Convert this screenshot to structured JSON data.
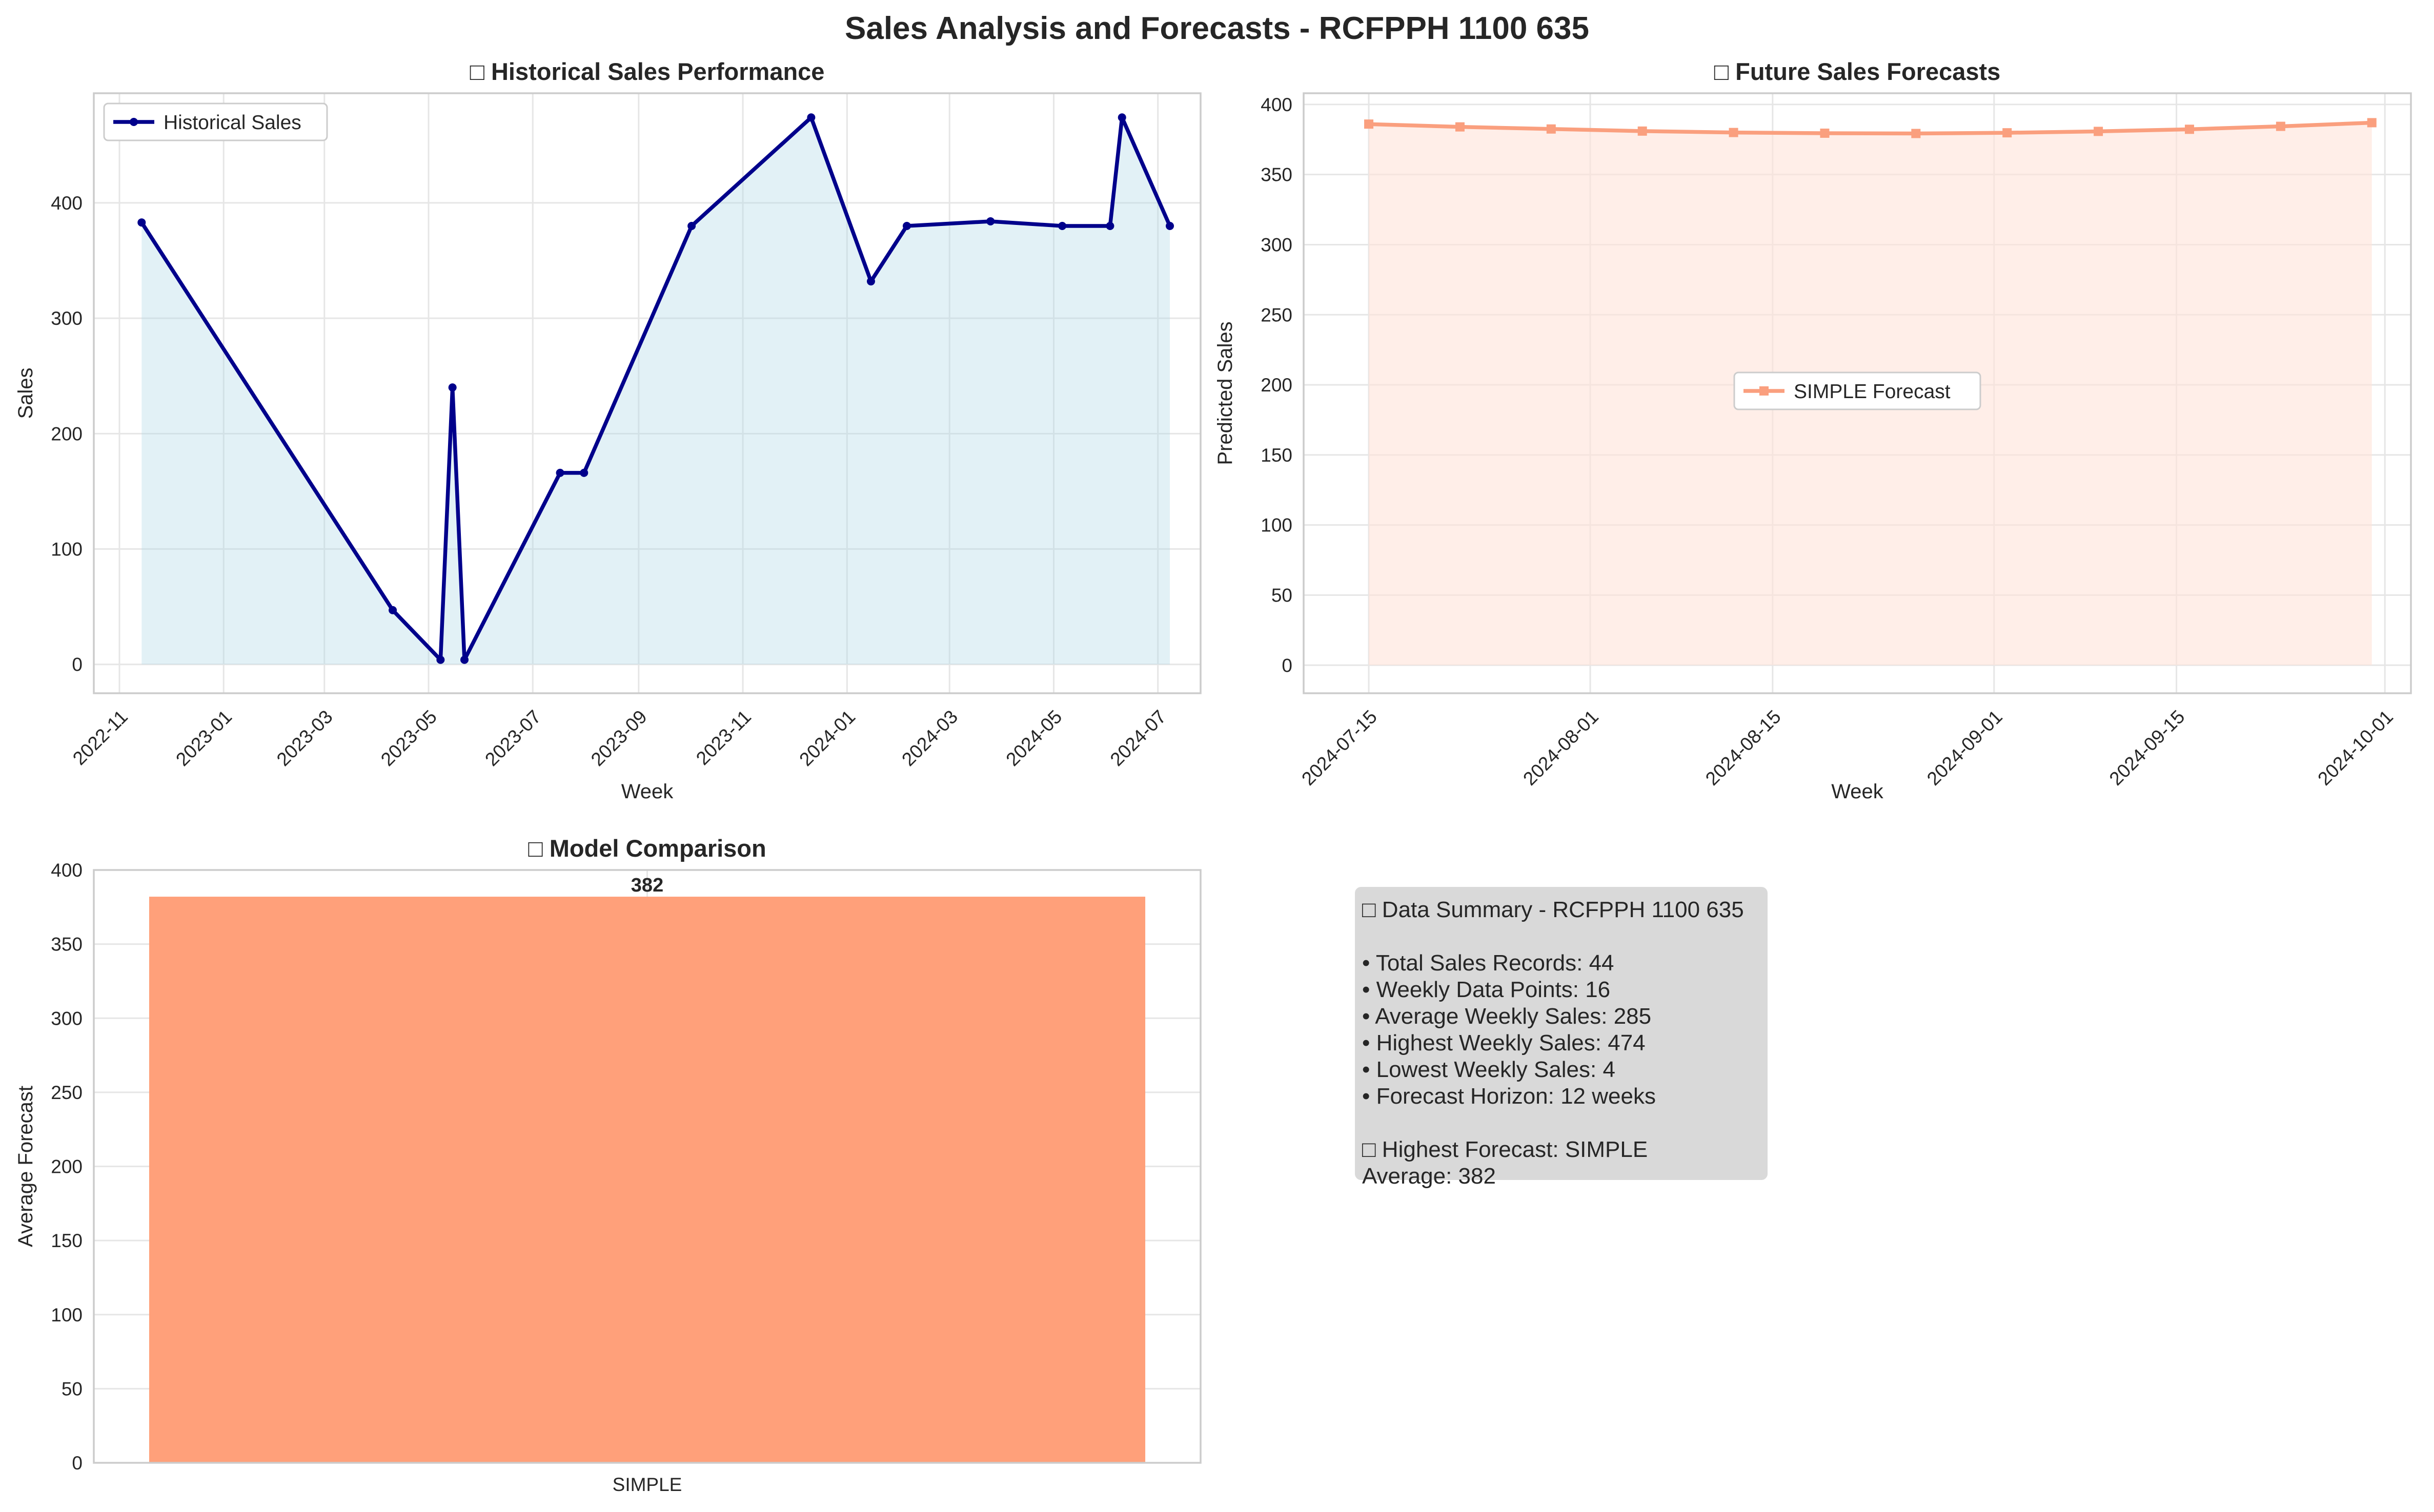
{
  "figure": {
    "title": "Sales Analysis and Forecasts - RCFPPH 1100 635"
  },
  "chart_data": [
    {
      "type": "line",
      "title": "□ Historical Sales Performance",
      "xlabel": "Week",
      "ylabel": "Sales",
      "xlim": [
        "2022-10-17",
        "2024-07-26"
      ],
      "ylim": [
        -25,
        495
      ],
      "x_ticks": [
        "2022-11",
        "2023-01",
        "2023-03",
        "2023-05",
        "2023-07",
        "2023-09",
        "2023-11",
        "2024-01",
        "2024-03",
        "2024-05",
        "2024-07"
      ],
      "y_ticks": [
        0,
        100,
        200,
        300,
        400
      ],
      "grid": true,
      "legend": "upper left",
      "series": [
        {
          "name": "Historical Sales",
          "color": "#00008b",
          "fill_color": "#add8e6",
          "x": [
            "2022-11-14",
            "2023-04-10",
            "2023-05-08",
            "2023-05-15",
            "2023-05-22",
            "2023-07-17",
            "2023-07-31",
            "2023-10-02",
            "2023-12-11",
            "2024-01-15",
            "2024-02-05",
            "2024-03-25",
            "2024-05-06",
            "2024-06-03",
            "2024-06-10",
            "2024-07-08"
          ],
          "y": [
            383,
            47,
            4,
            240,
            4,
            166,
            166,
            380,
            474,
            332,
            380,
            384,
            380,
            380,
            474,
            380
          ]
        }
      ]
    },
    {
      "type": "line",
      "title": "□ Future Sales Forecasts",
      "xlabel": "Week",
      "ylabel": "Predicted Sales",
      "xlim": [
        "2024-07-10",
        "2024-10-03"
      ],
      "ylim": [
        -20,
        408
      ],
      "x_ticks": [
        "2024-07-15",
        "2024-08-01",
        "2024-08-15",
        "2024-09-01",
        "2024-09-15",
        "2024-10-01"
      ],
      "y_ticks": [
        0,
        50,
        100,
        150,
        200,
        250,
        300,
        350,
        400
      ],
      "grid": true,
      "legend": "center",
      "series": [
        {
          "name": "SIMPLE Forecast",
          "color": "#fa9f7e",
          "fill_color": "#ffe3d9",
          "x": [
            "2024-07-15",
            "2024-07-22",
            "2024-07-29",
            "2024-08-05",
            "2024-08-12",
            "2024-08-19",
            "2024-08-26",
            "2024-09-02",
            "2024-09-09",
            "2024-09-16",
            "2024-09-23",
            "2024-09-30"
          ],
          "y": [
            386,
            384,
            382.5,
            381,
            380,
            379.5,
            379.3,
            379.8,
            380.8,
            382.3,
            384.4,
            387
          ]
        }
      ]
    },
    {
      "type": "bar",
      "title": "□ Model Comparison",
      "xlabel": "",
      "ylabel": "Average Forecast",
      "categories": [
        "SIMPLE"
      ],
      "values": [
        382
      ],
      "value_labels": [
        "382"
      ],
      "ylim": [
        0,
        400
      ],
      "y_ticks": [
        0,
        50,
        100,
        150,
        200,
        250,
        300,
        350,
        400
      ],
      "grid": true,
      "color": "#ffa07a"
    }
  ],
  "summary": {
    "lines": [
      "□ Data Summary - RCFPPH 1100 635",
      "",
      "• Total Sales Records: 44",
      "• Weekly Data Points: 16",
      "• Average Weekly Sales: 285",
      "• Highest Weekly Sales: 474",
      "• Lowest Weekly Sales: 4",
      "• Forecast Horizon: 12 weeks",
      "",
      "□ Highest Forecast: SIMPLE",
      "   Average: 382"
    ],
    "background": "#d9d9d9"
  }
}
